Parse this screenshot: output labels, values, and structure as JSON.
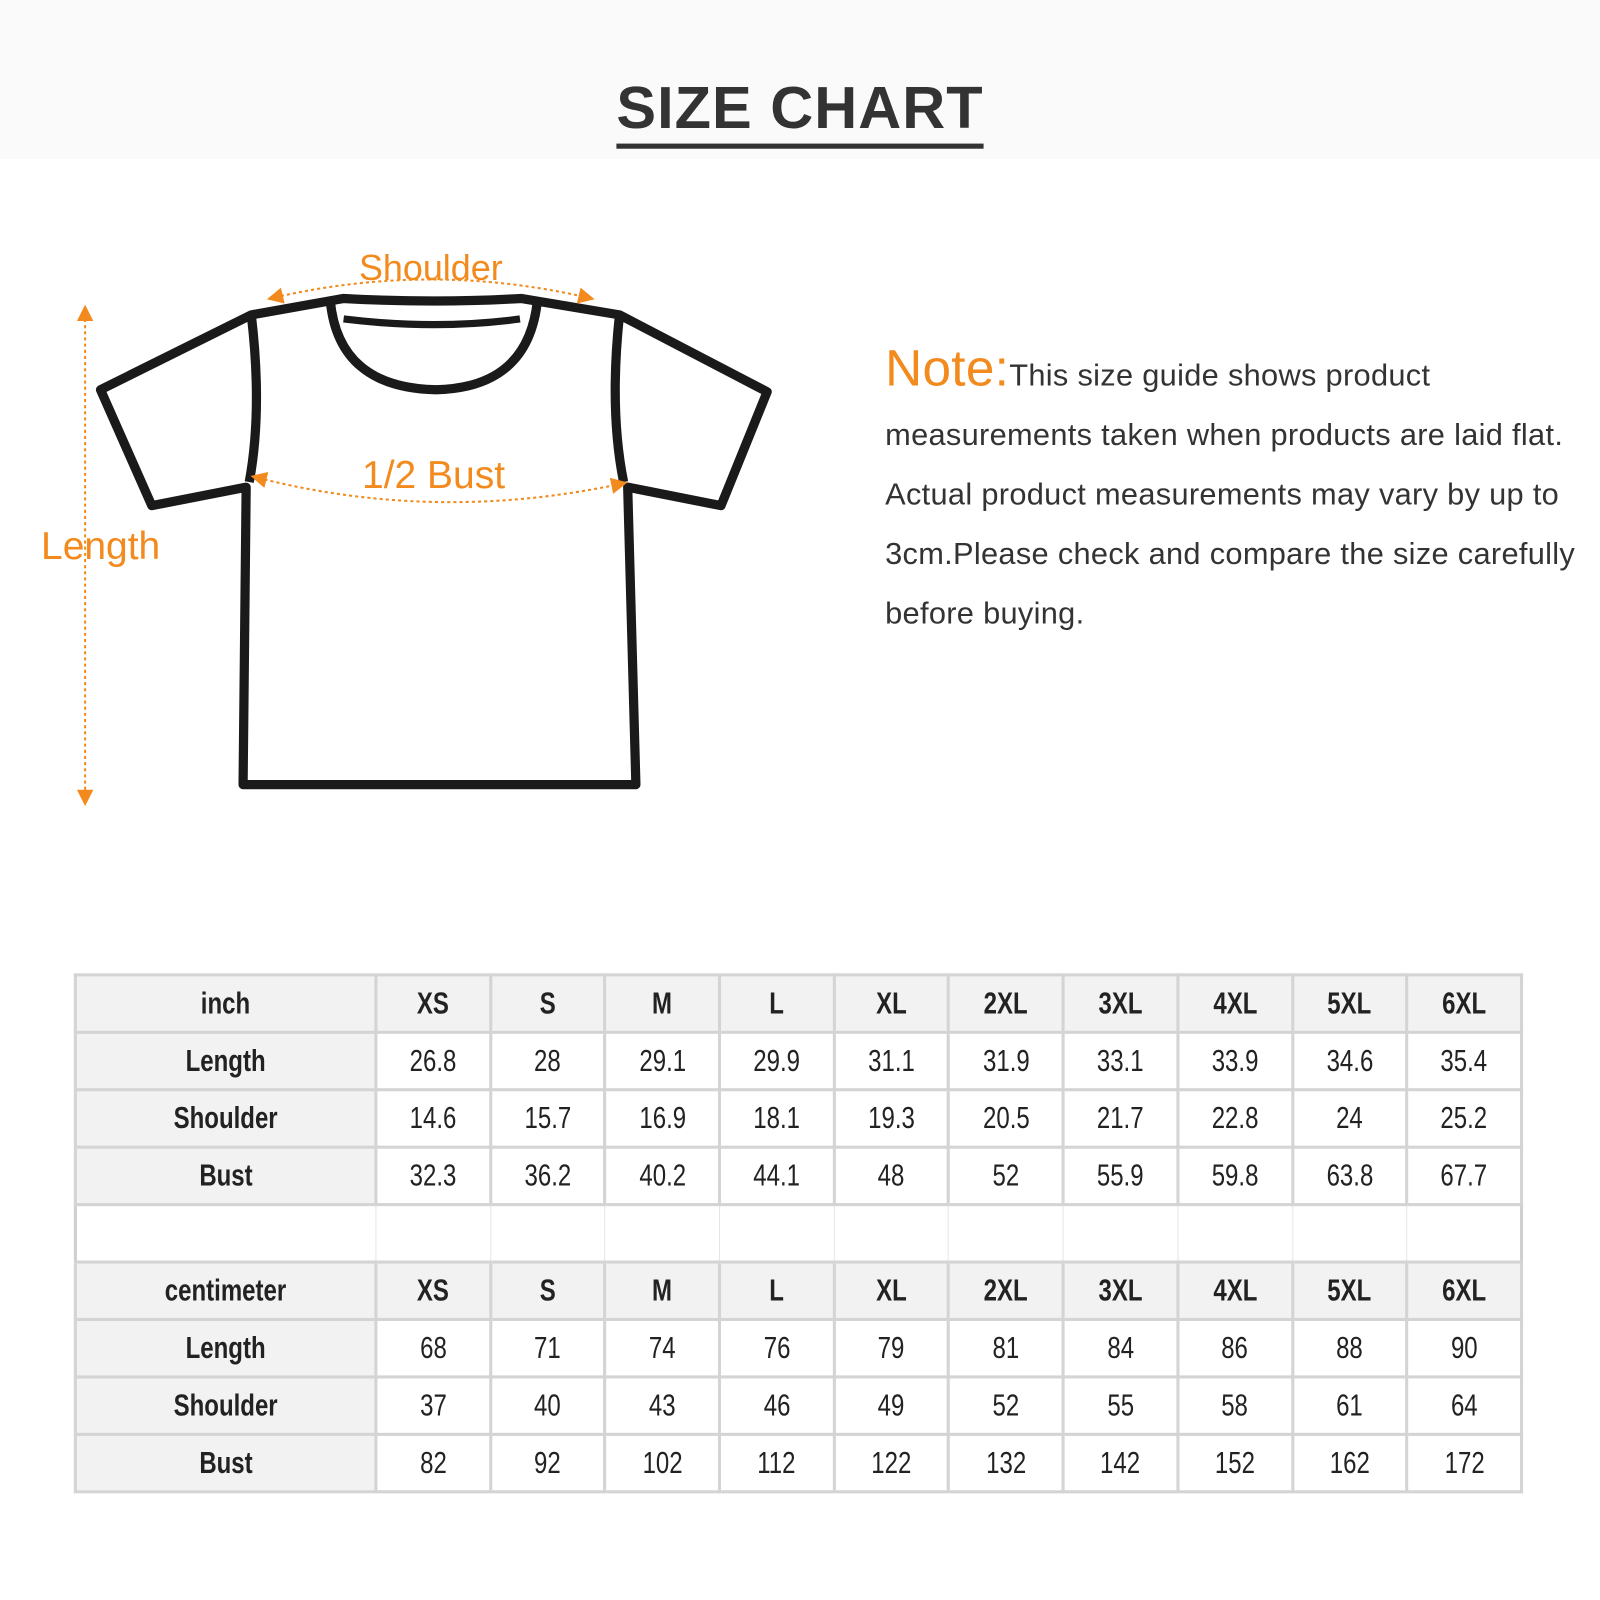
{
  "title": "SIZE CHART",
  "diagram": {
    "labels": {
      "shoulder": "Shoulder",
      "bust": "1/2 Bust",
      "length": "Length"
    },
    "accent_color": "#f28a1e"
  },
  "note": {
    "label": "Note:",
    "text": "This size guide shows product measurements taken when products are laid flat. Actual product measurements may vary by up to 3cm.Please check and compare the size carefully before buying."
  },
  "sizes": [
    "XS",
    "S",
    "M",
    "L",
    "XL",
    "2XL",
    "3XL",
    "4XL",
    "5XL",
    "6XL"
  ],
  "tables": [
    {
      "unit": "inch",
      "rows": [
        {
          "label": "Length",
          "values": [
            "26.8",
            "28",
            "29.1",
            "29.9",
            "31.1",
            "31.9",
            "33.1",
            "33.9",
            "34.6",
            "35.4"
          ]
        },
        {
          "label": "Shoulder",
          "values": [
            "14.6",
            "15.7",
            "16.9",
            "18.1",
            "19.3",
            "20.5",
            "21.7",
            "22.8",
            "24",
            "25.2"
          ]
        },
        {
          "label": "Bust",
          "values": [
            "32.3",
            "36.2",
            "40.2",
            "44.1",
            "48",
            "52",
            "55.9",
            "59.8",
            "63.8",
            "67.7"
          ]
        }
      ]
    },
    {
      "unit": "centimeter",
      "rows": [
        {
          "label": "Length",
          "values": [
            "68",
            "71",
            "74",
            "76",
            "79",
            "81",
            "84",
            "86",
            "88",
            "90"
          ]
        },
        {
          "label": "Shoulder",
          "values": [
            "37",
            "40",
            "43",
            "46",
            "49",
            "52",
            "55",
            "58",
            "61",
            "64"
          ]
        },
        {
          "label": "Bust",
          "values": [
            "82",
            "92",
            "102",
            "112",
            "122",
            "132",
            "142",
            "152",
            "162",
            "172"
          ]
        }
      ]
    }
  ]
}
